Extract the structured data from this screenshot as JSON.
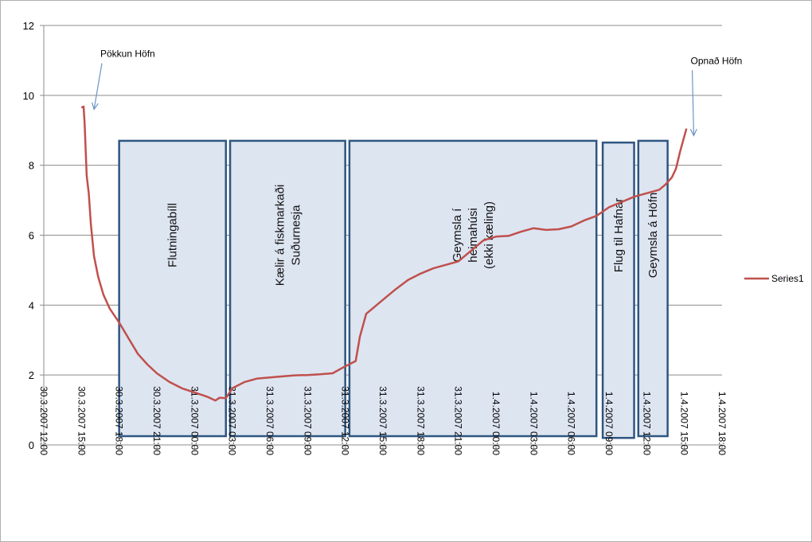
{
  "chart_data": {
    "type": "line",
    "title": "",
    "xlabel": "",
    "ylabel": "",
    "ylim": [
      0,
      12
    ],
    "yticks": [
      "0",
      "2",
      "4",
      "6",
      "8",
      "10",
      "12"
    ],
    "xlim": [
      "2007-03-30T12:00",
      "2007-04-01T18:00"
    ],
    "xticks": [
      "30.3.2007 12:00",
      "30.3.2007 15:00",
      "30.3.2007 18:00",
      "30.3.2007 21:00",
      "31.3.2007 00:00",
      "31.3.2007 03:00",
      "31.3.2007 06:00",
      "31.3.2007 09:00",
      "31.3.2007 12:00",
      "31.3.2007 15:00",
      "31.3.2007 18:00",
      "31.3.2007 21:00",
      "1.4.2007 00:00",
      "1.4.2007 03:00",
      "1.4.2007 06:00",
      "1.4.2007 09:00",
      "1.4.2007 12:00",
      "1.4.2007 15:00",
      "1.4.2007 18:00"
    ],
    "grid": true,
    "legend_position": "right",
    "series": [
      {
        "name": "Series1",
        "color": "#c0504d",
        "points": [
          [
            "2007-03-30T15:00",
            9.65
          ],
          [
            "2007-03-30T15:10",
            9.68
          ],
          [
            "2007-03-30T15:15",
            9.2
          ],
          [
            "2007-03-30T15:25",
            7.7
          ],
          [
            "2007-03-30T15:35",
            7.2
          ],
          [
            "2007-03-30T15:45",
            6.3
          ],
          [
            "2007-03-30T16:00",
            5.4
          ],
          [
            "2007-03-30T16:20",
            4.8
          ],
          [
            "2007-03-30T16:45",
            4.3
          ],
          [
            "2007-03-30T17:15",
            3.9
          ],
          [
            "2007-03-30T18:00",
            3.5
          ],
          [
            "2007-03-30T18:45",
            3.05
          ],
          [
            "2007-03-30T19:30",
            2.6
          ],
          [
            "2007-03-30T20:15",
            2.3
          ],
          [
            "2007-03-30T21:00",
            2.05
          ],
          [
            "2007-03-30T22:00",
            1.8
          ],
          [
            "2007-03-30T23:00",
            1.62
          ],
          [
            "2007-03-31T00:00",
            1.5
          ],
          [
            "2007-03-31T01:00",
            1.38
          ],
          [
            "2007-03-31T01:40",
            1.27
          ],
          [
            "2007-03-31T02:00",
            1.35
          ],
          [
            "2007-03-31T02:30",
            1.34
          ],
          [
            "2007-03-31T03:00",
            1.62
          ],
          [
            "2007-03-31T04:00",
            1.8
          ],
          [
            "2007-03-31T05:00",
            1.9
          ],
          [
            "2007-03-31T06:00",
            1.93
          ],
          [
            "2007-03-31T07:00",
            1.96
          ],
          [
            "2007-03-31T08:00",
            1.99
          ],
          [
            "2007-03-31T09:00",
            2.0
          ],
          [
            "2007-03-31T10:00",
            2.02
          ],
          [
            "2007-03-31T11:00",
            2.05
          ],
          [
            "2007-03-31T12:00",
            2.25
          ],
          [
            "2007-03-31T12:50",
            2.4
          ],
          [
            "2007-03-31T13:10",
            3.1
          ],
          [
            "2007-03-31T13:40",
            3.75
          ],
          [
            "2007-03-31T15:00",
            4.15
          ],
          [
            "2007-03-31T16:00",
            4.45
          ],
          [
            "2007-03-31T17:00",
            4.72
          ],
          [
            "2007-03-31T18:00",
            4.9
          ],
          [
            "2007-03-31T19:00",
            5.05
          ],
          [
            "2007-03-31T20:00",
            5.15
          ],
          [
            "2007-03-31T21:00",
            5.25
          ],
          [
            "2007-03-31T22:00",
            5.55
          ],
          [
            "2007-03-31T23:00",
            5.85
          ],
          [
            "2007-04-01T00:00",
            5.96
          ],
          [
            "2007-04-01T01:00",
            5.98
          ],
          [
            "2007-04-01T02:00",
            6.1
          ],
          [
            "2007-04-01T03:00",
            6.2
          ],
          [
            "2007-04-01T04:00",
            6.15
          ],
          [
            "2007-04-01T05:00",
            6.17
          ],
          [
            "2007-04-01T06:00",
            6.25
          ],
          [
            "2007-04-01T07:00",
            6.42
          ],
          [
            "2007-04-01T08:00",
            6.55
          ],
          [
            "2007-04-01T09:00",
            6.8
          ],
          [
            "2007-04-01T10:00",
            6.95
          ],
          [
            "2007-04-01T11:00",
            7.1
          ],
          [
            "2007-04-01T12:00",
            7.2
          ],
          [
            "2007-04-01T13:00",
            7.3
          ],
          [
            "2007-04-01T13:30",
            7.45
          ],
          [
            "2007-04-01T14:00",
            7.65
          ],
          [
            "2007-04-01T14:20",
            7.9
          ],
          [
            "2007-04-01T14:40",
            8.4
          ],
          [
            "2007-04-01T15:10",
            9.05
          ]
        ]
      }
    ],
    "regions": [
      {
        "label": [
          "Flutningabíll"
        ],
        "start": "2007-03-30T18:00",
        "end": "2007-03-31T02:30",
        "ymin": 0.25,
        "ymax": 8.7
      },
      {
        "label": [
          "Kælir á fiskmarkaði",
          "Suðurnesja"
        ],
        "start": "2007-03-31T02:50",
        "end": "2007-03-31T12:00",
        "ymin": 0.25,
        "ymax": 8.7
      },
      {
        "label": [
          "Geymsla í",
          "heimahúsi",
          "(ekki kæling)"
        ],
        "start": "2007-03-31T12:20",
        "end": "2007-04-01T08:00",
        "ymin": 0.25,
        "ymax": 8.7
      },
      {
        "label": [
          "Flug til Hafnar"
        ],
        "start": "2007-04-01T08:30",
        "end": "2007-04-01T11:00",
        "ymin": 0.2,
        "ymax": 8.65
      },
      {
        "label": [
          "Geymsla á Höfn"
        ],
        "start": "2007-04-01T11:20",
        "end": "2007-04-01T13:40",
        "ymin": 0.25,
        "ymax": 8.7
      }
    ],
    "annotations": [
      {
        "text": "Pökkun Höfn",
        "x": "2007-03-30T16:30",
        "y": 11.1,
        "arrow_to": [
          "2007-03-30T16:00",
          9.6
        ]
      },
      {
        "text": "Opnað  Höfn",
        "x": "2007-04-01T15:30",
        "y": 10.9,
        "arrow_to": [
          "2007-04-01T15:45",
          8.85
        ]
      }
    ]
  }
}
